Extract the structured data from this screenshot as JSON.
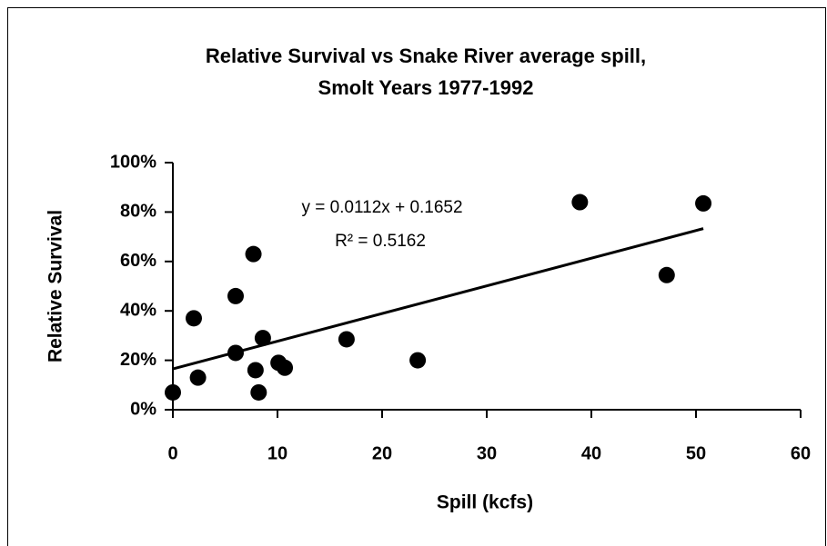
{
  "chart_data": {
    "type": "scatter",
    "title": [
      "Relative Survival vs Snake River average spill,",
      "Smolt Years 1977-1992"
    ],
    "x_label": "Spill (kcfs)",
    "y_label": "Relative Survival",
    "x": [
      0,
      2.0,
      2.4,
      6.0,
      6.0,
      7.7,
      7.9,
      8.2,
      8.6,
      10.1,
      10.7,
      16.6,
      23.4,
      38.9,
      47.2,
      50.7
    ],
    "values": [
      7,
      37,
      13,
      23,
      46,
      63,
      16,
      7,
      29,
      19,
      17,
      28.5,
      20,
      84,
      54.5,
      83.5
    ],
    "color": "#000000",
    "xlim": [
      0,
      60
    ],
    "xticks": [
      0,
      10,
      20,
      30,
      40,
      50,
      60
    ],
    "ylim": [
      0,
      100
    ],
    "yticks": [
      {
        "value": 0,
        "label": "0%"
      },
      {
        "value": 20,
        "label": "20%"
      },
      {
        "value": 40,
        "label": "40%"
      },
      {
        "value": 60,
        "label": "60%"
      },
      {
        "value": 80,
        "label": "80%"
      },
      {
        "value": 100,
        "label": "100%"
      }
    ],
    "trendline": {
      "slope": 1.12,
      "intercept": 16.52,
      "x_range": [
        0,
        50.7
      ],
      "equation": "y = 0.0112x + 0.1652",
      "r_squared": "R² = 0.5162"
    }
  }
}
